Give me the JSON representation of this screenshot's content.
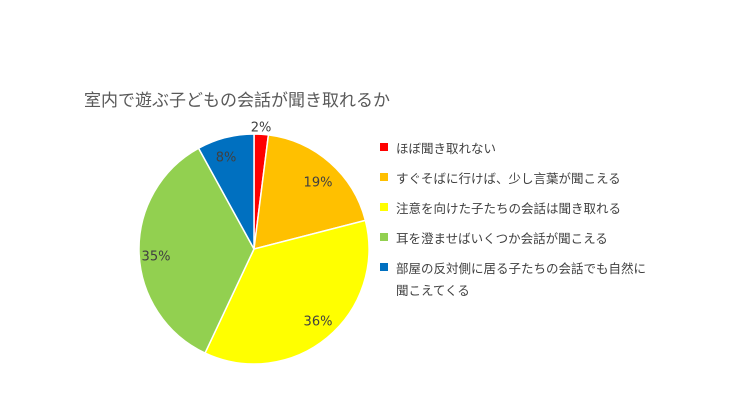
{
  "chart_data": {
    "type": "pie",
    "title": "室内で遊ぶ子どもの会話が聞き取れるか",
    "categories": [
      "ほぼ聞き取れない",
      "すぐそばに行けば、少し言葉が聞こえる",
      "注意を向けた子たちの会話は聞き取れる",
      "耳を澄ませばいくつか会話が聞こえる",
      "部屋の反対側に居る子たちの会話でも自然に聞こえてくる"
    ],
    "values": [
      2,
      19,
      36,
      35,
      8
    ],
    "labels": [
      "2%",
      "19%",
      "36%",
      "35%",
      "8%"
    ],
    "colors": [
      "#ff0000",
      "#ffc000",
      "#ffff00",
      "#92d050",
      "#0070c0"
    ],
    "legend_position": "right"
  }
}
